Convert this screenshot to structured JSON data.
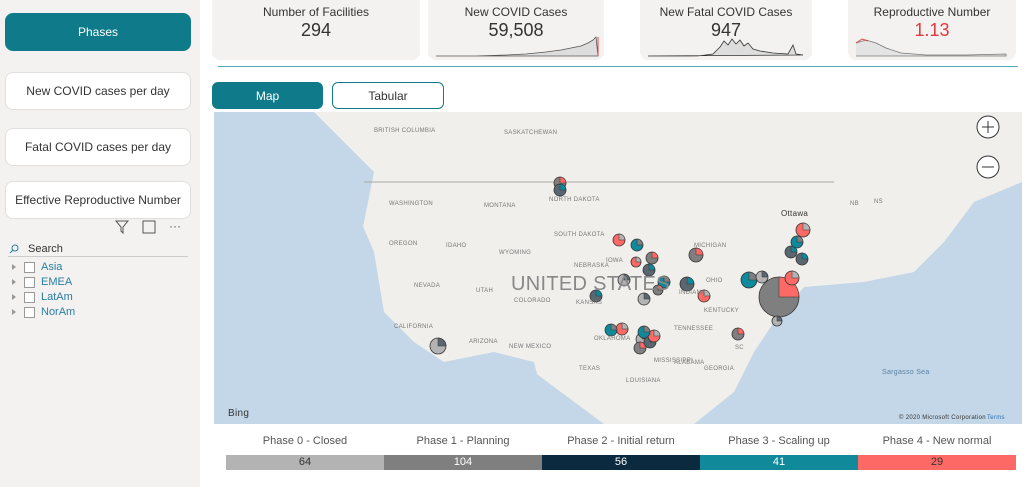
{
  "nav": [
    "Phases",
    "New COVID cases per day",
    "Fatal COVID cases per day",
    "Effective Reproductive Number"
  ],
  "kpis": [
    {
      "label": "Number of Facilities",
      "value": "294"
    },
    {
      "label": "New COVID Cases",
      "value": "59,508"
    },
    {
      "label": "New Fatal COVID Cases",
      "value": "947"
    },
    {
      "label": "Reproductive Number",
      "value": "1.13"
    }
  ],
  "tabs": [
    "Map",
    "Tabular"
  ],
  "slicer": {
    "search": "Search",
    "items": [
      "Asia",
      "EMEA",
      "LatAm",
      "NorAm"
    ]
  },
  "map": {
    "labels": [
      "BRITISH COLUMBIA",
      "SASKATCHEWAN",
      "WASHINGTON",
      "MONTANA",
      "NORTH DAKOTA",
      "SOUTH DAKOTA",
      "OREGON",
      "IDAHO",
      "WYOMING",
      "NEBRASKA",
      "IOWA",
      "NEVADA",
      "UTAH",
      "COLORADO",
      "KANSAS",
      "CALIFORNIA",
      "ARIZONA",
      "NEW MEXICO",
      "OKLAHOMA",
      "TEXAS",
      "LOUISIANA",
      "MISSISSIPPI",
      "ALABAMA",
      "GEORGIA",
      "TENNESSEE",
      "KENTUCKY",
      "OHIO",
      "INDIANA",
      "MICHIGAN",
      "Ottawa",
      "NB",
      "NS",
      "SC",
      "Sargasso Sea"
    ],
    "country": "UNITED STATES",
    "brand": "Bing",
    "copyright": "© 2020 Microsoft Corporation",
    "terms": "Terms"
  },
  "phases": [
    {
      "name": "Phase 0 - Closed",
      "count": "64"
    },
    {
      "name": "Phase 1 - Planning",
      "count": "104"
    },
    {
      "name": "Phase 2 - Initial return",
      "count": "56"
    },
    {
      "name": "Phase 3 - Scaling up",
      "count": "41"
    },
    {
      "name": "Phase 4 - New normal",
      "count": "29"
    }
  ]
}
